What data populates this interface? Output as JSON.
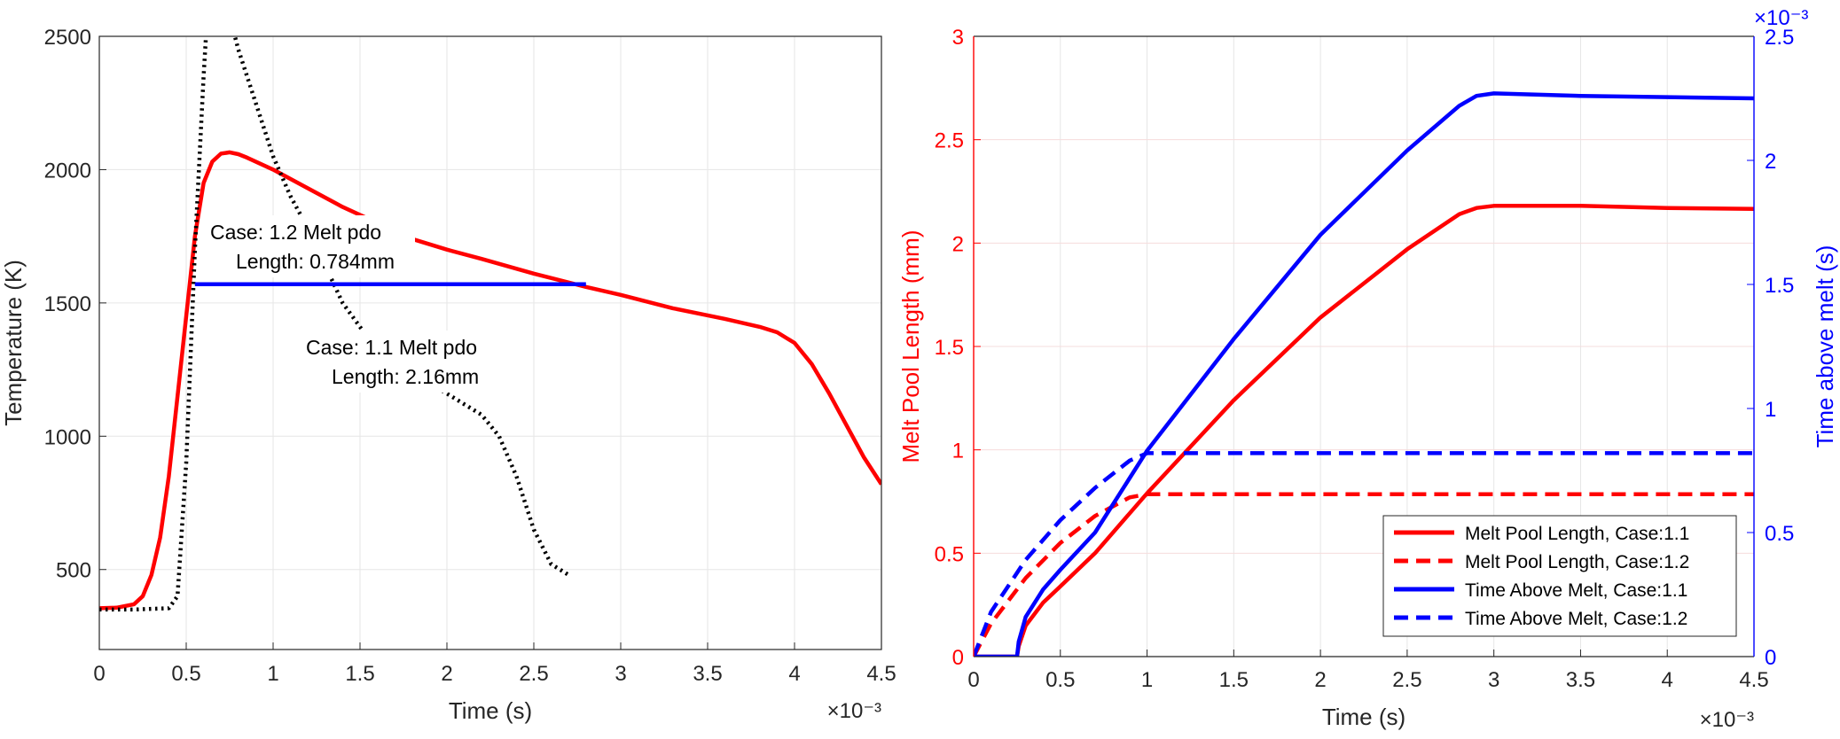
{
  "chart_data": [
    {
      "type": "line",
      "xlabel": "Time (s)",
      "ylabel": "Temperature (K)",
      "x_exponent_label": "×10⁻³",
      "xlim": [
        0,
        0.0045
      ],
      "ylim": [
        200,
        2500
      ],
      "grid": true,
      "x_ticks": [
        0,
        0.0005,
        0.001,
        0.0015,
        0.002,
        0.0025,
        0.003,
        0.0035,
        0.004,
        0.0045
      ],
      "x_tick_labels": [
        "0",
        "0.5",
        "1",
        "1.5",
        "2",
        "2.5",
        "3",
        "3.5",
        "4",
        "4.5"
      ],
      "y_ticks": [
        500,
        1000,
        1500,
        2000,
        2500
      ],
      "y_tick_labels": [
        "500",
        "1000",
        "1500",
        "2000",
        "2500"
      ],
      "series": [
        {
          "style": "solid",
          "color": "#ff0000",
          "x": [
            0,
            0.0001,
            0.0002,
            0.00025,
            0.0003,
            0.00035,
            0.0004,
            0.00045,
            0.0005,
            0.00055,
            0.0006,
            0.00065,
            0.0007,
            0.00075,
            0.0008,
            0.00085,
            0.0009,
            0.001,
            0.0012,
            0.0014,
            0.0016,
            0.0018,
            0.002,
            0.0022,
            0.0025,
            0.0028,
            0.003,
            0.0033,
            0.0036,
            0.0038,
            0.0039,
            0.004,
            0.0041,
            0.0042,
            0.0043,
            0.0044,
            0.0045
          ],
          "y": [
            355,
            357,
            370,
            400,
            480,
            620,
            850,
            1150,
            1450,
            1750,
            1950,
            2030,
            2060,
            2065,
            2058,
            2045,
            2030,
            2000,
            1930,
            1860,
            1800,
            1740,
            1700,
            1665,
            1610,
            1560,
            1530,
            1480,
            1440,
            1410,
            1390,
            1350,
            1270,
            1160,
            1040,
            920,
            820
          ]
        },
        {
          "style": "dotted",
          "color": "#000000",
          "x": [
            0,
            0.0002,
            0.0004,
            0.00045,
            0.0005,
            0.00055,
            0.0006,
            0.00065,
            0.0007,
            0.0008,
            0.0009,
            0.001,
            0.0011,
            0.0012,
            0.0014,
            0.0016,
            0.0018,
            0.002,
            0.0022,
            0.0023,
            0.0024,
            0.0025,
            0.0026,
            0.0027
          ],
          "y": [
            350,
            350,
            355,
            400,
            900,
            1700,
            2350,
            2900,
            2700,
            2450,
            2250,
            2050,
            1900,
            1780,
            1500,
            1320,
            1240,
            1160,
            1080,
            1000,
            850,
            650,
            520,
            480
          ]
        },
        {
          "style": "solid",
          "color": "#0000ff",
          "x": [
            0.00055,
            0.0028
          ],
          "y": [
            1570,
            1570
          ]
        }
      ],
      "annotations": [
        {
          "line1": "Case: 1.2 Melt pdo",
          "line2": "Length: 0.784mm"
        },
        {
          "line1": "Case: 1.1 Melt pdo",
          "line2": "Length: 2.16mm"
        }
      ]
    },
    {
      "type": "line",
      "xlabel": "Time (s)",
      "ylabel_left": "Melt Pool Length (mm)",
      "ylabel_right": "Time above melt (s)",
      "x_exponent_label": "×10⁻³",
      "y2_exponent_label": "×10⁻³",
      "xlim": [
        0,
        0.0045
      ],
      "ylim_left": [
        0,
        3
      ],
      "ylim_right": [
        0,
        0.0025
      ],
      "grid": true,
      "legend_position": "bottom-right",
      "x_ticks": [
        0,
        0.0005,
        0.001,
        0.0015,
        0.002,
        0.0025,
        0.003,
        0.0035,
        0.004,
        0.0045
      ],
      "x_tick_labels": [
        "0",
        "0.5",
        "1",
        "1.5",
        "2",
        "2.5",
        "3",
        "3.5",
        "4",
        "4.5"
      ],
      "y_left_ticks": [
        0,
        0.5,
        1,
        1.5,
        2,
        2.5,
        3
      ],
      "y_left_tick_labels": [
        "0",
        "0.5",
        "1",
        "1.5",
        "2",
        "2.5",
        "3"
      ],
      "y_right_ticks": [
        0,
        0.0005,
        0.001,
        0.0015,
        0.002,
        0.0025
      ],
      "y_right_tick_labels": [
        "0",
        "0.5",
        "1",
        "1.5",
        "2",
        "2.5"
      ],
      "series": [
        {
          "name": "Melt Pool Length, Case:1.1",
          "axis": "left",
          "style": "solid",
          "color": "#ff0000",
          "x": [
            0,
            0.00025,
            0.00026,
            0.0003,
            0.0004,
            0.0005,
            0.0007,
            0.001,
            0.0015,
            0.002,
            0.0025,
            0.0028,
            0.0029,
            0.003,
            0.0035,
            0.004,
            0.0045
          ],
          "y": [
            0,
            0,
            0.05,
            0.15,
            0.26,
            0.34,
            0.5,
            0.79,
            1.24,
            1.64,
            1.97,
            2.14,
            2.17,
            2.18,
            2.18,
            2.17,
            2.165
          ]
        },
        {
          "name": "Melt Pool Length, Case:1.2",
          "axis": "left",
          "style": "dashed",
          "color": "#ff0000",
          "x": [
            0,
            0.0001,
            0.0003,
            0.0005,
            0.0007,
            0.0009,
            0.001,
            0.0015,
            0.002,
            0.0025,
            0.003,
            0.0035,
            0.004,
            0.0045
          ],
          "y": [
            0,
            0.16,
            0.38,
            0.55,
            0.68,
            0.77,
            0.785,
            0.785,
            0.785,
            0.785,
            0.785,
            0.785,
            0.785,
            0.785
          ]
        },
        {
          "name": "Time Above Melt, Case:1.1",
          "axis": "right",
          "style": "solid",
          "color": "#0000ff",
          "x": [
            0,
            0.00025,
            0.00026,
            0.0003,
            0.0004,
            0.0005,
            0.0007,
            0.001,
            0.0015,
            0.002,
            0.0025,
            0.0028,
            0.0029,
            0.003,
            0.0035,
            0.004,
            0.0045
          ],
          "y": [
            0,
            0,
            6e-05,
            0.00016,
            0.00027,
            0.00035,
            0.0005,
            0.00083,
            0.00128,
            0.0017,
            0.00204,
            0.00222,
            0.00226,
            0.00227,
            0.00226,
            0.002255,
            0.00225
          ]
        },
        {
          "name": "Time Above Melt, Case:1.2",
          "axis": "right",
          "style": "dashed",
          "color": "#0000ff",
          "x": [
            0,
            0.0001,
            0.0003,
            0.0005,
            0.0007,
            0.0009,
            0.001,
            0.0015,
            0.002,
            0.0025,
            0.003,
            0.0035,
            0.004,
            0.0045
          ],
          "y": [
            0,
            0.00018,
            0.00039,
            0.00055,
            0.00068,
            0.00079,
            0.00082,
            0.00082,
            0.00082,
            0.00082,
            0.00082,
            0.00082,
            0.00082,
            0.00082
          ]
        }
      ]
    }
  ]
}
